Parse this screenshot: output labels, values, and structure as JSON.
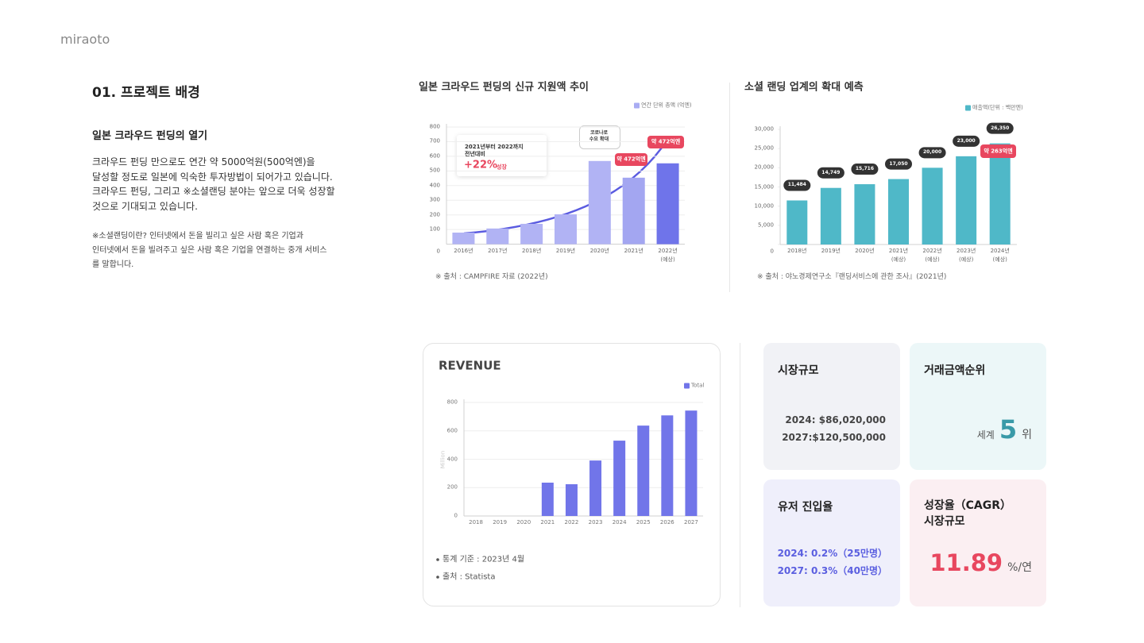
{
  "header": {
    "brand": "miraoto"
  },
  "intro": {
    "section_title": "01. 프로젝트 배경",
    "heading": "일본 크라우드 펀딩의 열기",
    "body": "크라우드 펀딩 만으로도 연간 약 5000억원(500억엔)을\n달성할 정도로 일본에 익숙한 투자방법이 되어가고 있습니다.\n크라우드 펀딩, 그리고 ※소셜랜딩 분야는 앞으로 더욱 성장할\n것으로 기대되고 있습니다.",
    "note": "※소셜랜딩이란? 인터넷에서 돈을 빌리고 싶은 사람 혹은 기업과\n인터넷에서 돈을 빌려주고 싶은 사람 혹은 기업을 연결하는 중개 서비스\n를 말합니다."
  },
  "chart_data": [
    {
      "type": "bar",
      "title": "일본 크라우드 펀딩의 신규 지원액 추이",
      "categories": [
        "2016년",
        "2017년",
        "2018년",
        "2019년",
        "2020년",
        "2021년",
        "2022년\n(예상)"
      ],
      "series": [
        {
          "name": "연간 단위 총액 (억엔)",
          "color": "#a9acf3",
          "colors": [
            "#b1b3f4",
            "#b1b3f4",
            "#b1b3f4",
            "#b1b3f4",
            "#b1b3f4",
            "#a3a6f1",
            "#6f74ea"
          ],
          "values": [
            79,
            107,
            139,
            204,
            568,
            454,
            552
          ]
        }
      ],
      "ylim": [
        0,
        800
      ],
      "yticks": [
        0,
        100,
        200,
        300,
        400,
        500,
        600,
        700,
        800
      ],
      "grid": true,
      "annotations": [
        "2021년부터 2022까지\n전년대비",
        "+22%",
        "성장",
        "코로나로\n수요 확대",
        "약 472억엔",
        "약 472억엔"
      ],
      "source": "※ 출처 : CAMPFIRE 자료 (2022년)"
    },
    {
      "type": "bar",
      "title": "소셜 랜딩 업계의 확대 예측",
      "categories": [
        "2018년",
        "2019년",
        "2020년",
        "2021년\n(예상)",
        "2022년\n(예상)",
        "2023년\n(예상)",
        "2024년\n(예상)"
      ],
      "series": [
        {
          "name": "매출액(단위 : 백만엔)",
          "color": "#4fb8c8",
          "values": [
            11484,
            14749,
            15716,
            17050,
            20000,
            23000,
            26350
          ],
          "value_labels": [
            "11,484",
            "14,749",
            "15,716",
            "17,050",
            "20,000",
            "23,000",
            "26,350"
          ]
        }
      ],
      "ylim": [
        0,
        30000
      ],
      "yticks": [
        0,
        {
          "value": 5000,
          "label": "5,000"
        },
        {
          "value": 10000,
          "label": "10,000"
        },
        {
          "value": 15000,
          "label": "15,000"
        },
        {
          "value": 20000,
          "label": "20,000"
        },
        {
          "value": 25000,
          "label": "25,000"
        },
        {
          "value": 30000,
          "label": "30,000"
        }
      ],
      "grid": false,
      "annotations": [
        "약 263억엔"
      ],
      "source": "※ 출처 : 야노경제연구소『랜딩서비스에 관한 조사』(2021년)"
    },
    {
      "type": "bar",
      "title": "REVENUE",
      "ylabel": "Million",
      "categories": [
        "2018",
        "2019",
        "2020",
        "2021",
        "2022",
        "2023",
        "2024",
        "2025",
        "2026",
        "2027"
      ],
      "series": [
        {
          "name": "Total",
          "color": "#7175e9",
          "values": [
            0,
            0,
            0,
            235,
            224,
            391,
            531,
            637,
            709,
            743
          ]
        }
      ],
      "ylim": [
        0,
        800
      ],
      "yticks": [
        0,
        200,
        400,
        600,
        800
      ],
      "grid": true,
      "notes": [
        "통계 기준 : 2023년 4월",
        "출처 : Statista"
      ]
    }
  ],
  "cards": [
    {
      "title": "시장규모",
      "lines": [
        "2024: $86,020,000",
        "2027:$120,500,000"
      ]
    },
    {
      "title": "거래금액순위",
      "prefix": "세계",
      "value": 5,
      "suffix": "위"
    },
    {
      "title": "유저 진입율",
      "lines": [
        "2024: 0.2%（25만명）",
        "2027: 0.3%（40만명）"
      ]
    },
    {
      "title": "성장율（CAGR）\n시장규모",
      "value": 11.89,
      "suffix": "%/연"
    }
  ]
}
